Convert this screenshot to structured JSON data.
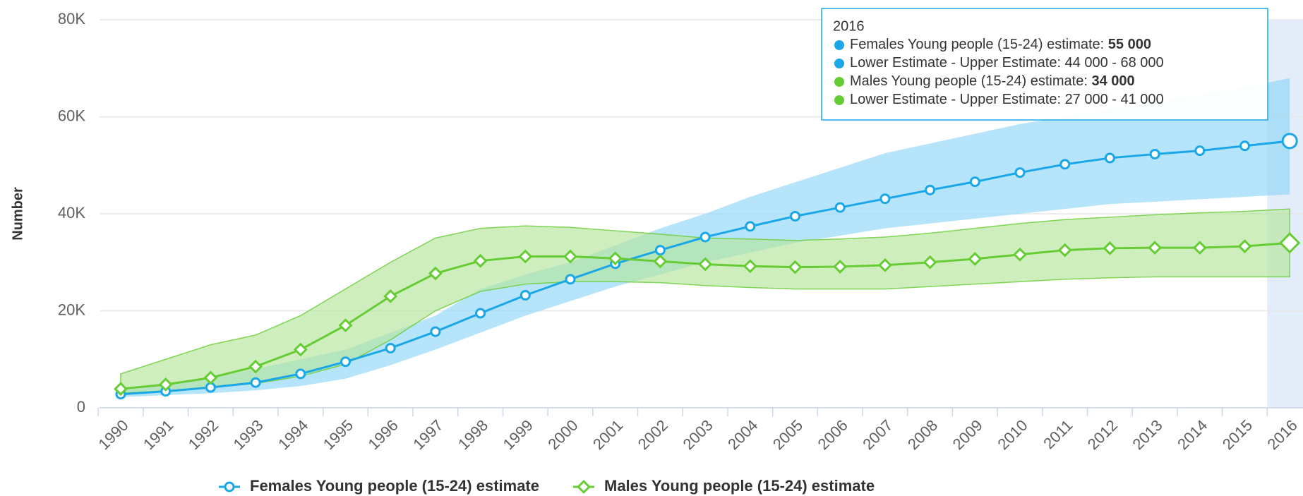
{
  "chart_data": {
    "type": "line",
    "y_label": "Number",
    "categories": [
      "1990",
      "1991",
      "1992",
      "1993",
      "1994",
      "1995",
      "1996",
      "1997",
      "1998",
      "1999",
      "2000",
      "2001",
      "2002",
      "2003",
      "2004",
      "2005",
      "2006",
      "2007",
      "2008",
      "2009",
      "2010",
      "2011",
      "2012",
      "2013",
      "2014",
      "2015",
      "2016"
    ],
    "ylim": [
      0,
      80000
    ],
    "yticks": [
      0,
      {
        "value": 20000,
        "label": "20K"
      },
      {
        "value": 40000,
        "label": "40K"
      },
      {
        "value": 60000,
        "label": "60K"
      },
      {
        "value": 80000,
        "label": "80K"
      }
    ],
    "grid": true,
    "highlight": "2016",
    "series": [
      {
        "name": "Females Young people (15-24) estimate",
        "color": "#1aa7e8",
        "band_color": "#8fd6f8",
        "marker": "circle",
        "values": [
          2800,
          3400,
          4200,
          5200,
          7000,
          9500,
          12300,
          15700,
          19500,
          23200,
          26500,
          29700,
          32500,
          35200,
          37400,
          39500,
          41300,
          43100,
          44900,
          46600,
          48500,
          50200,
          51500,
          52300,
          53000,
          54000,
          55000
        ],
        "lower": [
          2200,
          2600,
          3000,
          3600,
          4500,
          6000,
          8800,
          12000,
          15500,
          19000,
          22000,
          25000,
          27500,
          30000,
          32000,
          34000,
          35500,
          37000,
          38000,
          39000,
          40000,
          41000,
          42000,
          42500,
          43000,
          43500,
          44000
        ],
        "upper": [
          3600,
          4800,
          6200,
          8000,
          10000,
          12000,
          15500,
          19000,
          24500,
          27500,
          30000,
          33500,
          37000,
          40000,
          43500,
          46500,
          49500,
          52500,
          54500,
          56500,
          58500,
          60000,
          61500,
          63000,
          64500,
          66000,
          68000
        ]
      },
      {
        "name": "Males Young people (15-24) estimate",
        "color": "#66cc33",
        "band_color": "#b6e59b",
        "marker": "diamond",
        "values": [
          3900,
          4800,
          6200,
          8500,
          12000,
          17000,
          23000,
          27700,
          30300,
          31200,
          31200,
          30800,
          30200,
          29600,
          29200,
          29000,
          29100,
          29400,
          30000,
          30700,
          31600,
          32500,
          32900,
          33000,
          33000,
          33300,
          34000
        ],
        "lower": [
          3000,
          3500,
          4200,
          5000,
          6500,
          9000,
          14000,
          20000,
          24000,
          25500,
          26000,
          26000,
          25800,
          25200,
          24800,
          24500,
          24500,
          24500,
          25000,
          25500,
          26000,
          26500,
          26800,
          27000,
          27000,
          27000,
          27000
        ],
        "upper": [
          7000,
          10000,
          13000,
          15000,
          19000,
          24500,
          30000,
          35000,
          37000,
          37500,
          37200,
          36500,
          35800,
          35000,
          34800,
          34500,
          34800,
          35200,
          36000,
          37000,
          38000,
          38800,
          39300,
          39800,
          40200,
          40500,
          41000
        ]
      }
    ],
    "tooltip": {
      "title": "2016",
      "lines": [
        {
          "label": "Females Young people (15-24) estimate: ",
          "value": "55 000",
          "color": "#1aa7e8",
          "bold": true
        },
        {
          "label": "Lower Estimate - Upper Estimate: ",
          "value": "44 000 - 68 000",
          "color": "#1aa7e8",
          "bold": false
        },
        {
          "label": "Males Young people (15-24) estimate: ",
          "value": "34 000",
          "color": "#66cc33",
          "bold": true
        },
        {
          "label": "Lower Estimate - Upper Estimate: ",
          "value": "27 000 - 41 000",
          "color": "#66cc33",
          "bold": false
        }
      ]
    }
  }
}
